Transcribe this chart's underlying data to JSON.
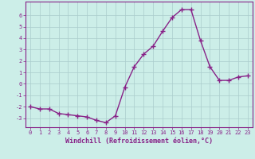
{
  "x": [
    0,
    1,
    2,
    3,
    4,
    5,
    6,
    7,
    8,
    9,
    10,
    11,
    12,
    13,
    14,
    15,
    16,
    17,
    18,
    19,
    20,
    21,
    22,
    23
  ],
  "y": [
    -2.0,
    -2.2,
    -2.2,
    -2.6,
    -2.7,
    -2.8,
    -2.9,
    -3.2,
    -3.4,
    -2.8,
    -0.3,
    1.5,
    2.6,
    3.3,
    4.6,
    5.8,
    6.5,
    6.5,
    3.8,
    1.5,
    0.3,
    0.3,
    0.6,
    0.7
  ],
  "line_color": "#882288",
  "marker": "+",
  "markersize": 4,
  "linewidth": 1.0,
  "markeredgewidth": 1.0,
  "bg_color": "#cceee8",
  "grid_color": "#aacccc",
  "xlabel": "Windchill (Refroidissement éolien,°C)",
  "xlim": [
    -0.5,
    23.5
  ],
  "ylim": [
    -3.8,
    7.2
  ],
  "yticks": [
    -3,
    -2,
    -1,
    0,
    1,
    2,
    3,
    4,
    5,
    6
  ],
  "xticks": [
    0,
    1,
    2,
    3,
    4,
    5,
    6,
    7,
    8,
    9,
    10,
    11,
    12,
    13,
    14,
    15,
    16,
    17,
    18,
    19,
    20,
    21,
    22,
    23
  ],
  "tick_fontsize": 5.0,
  "label_fontsize": 6.0,
  "axis_color": "#882288",
  "spine_color": "#882288"
}
